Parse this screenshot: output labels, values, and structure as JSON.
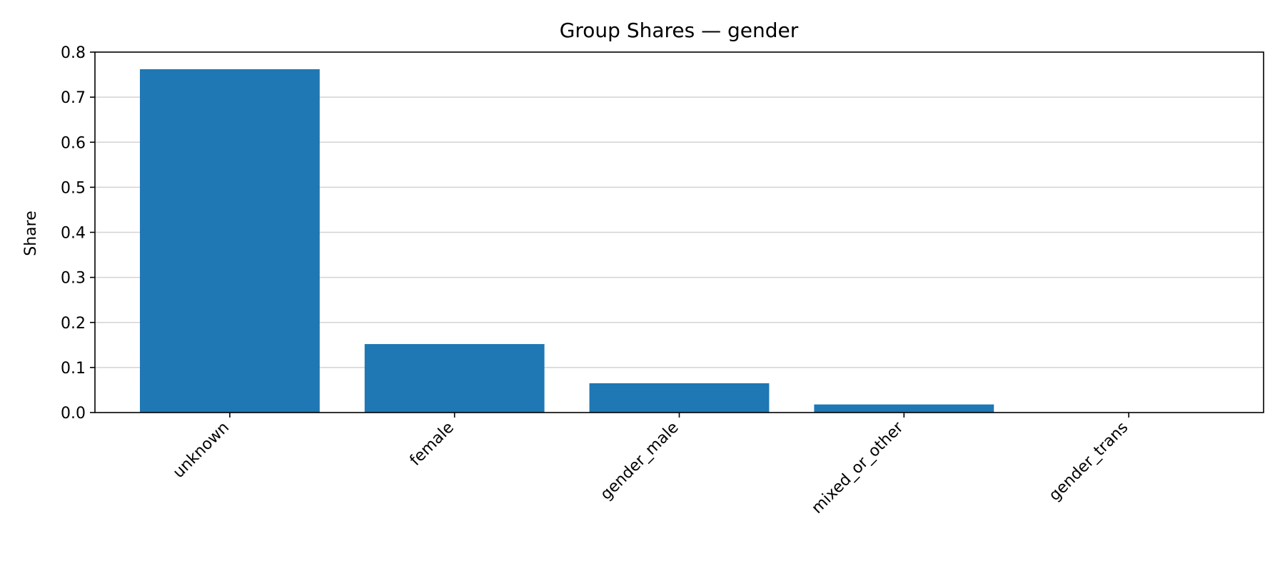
{
  "chart_data": {
    "type": "bar",
    "title": "Group Shares — gender",
    "xlabel": "",
    "ylabel": "Share",
    "ylim": [
      0,
      0.8
    ],
    "yticks": [
      0.0,
      0.1,
      0.2,
      0.3,
      0.4,
      0.5,
      0.6,
      0.7,
      0.8
    ],
    "ytick_labels": [
      "0.0",
      "0.1",
      "0.2",
      "0.3",
      "0.4",
      "0.5",
      "0.6",
      "0.7",
      "0.8"
    ],
    "categories": [
      "unknown",
      "female",
      "gender_male",
      "mixed_or_other",
      "gender_trans"
    ],
    "values": [
      0.762,
      0.152,
      0.065,
      0.018,
      0.0
    ],
    "bar_color": "#1f77b4",
    "grid": "y",
    "grid_color": "#d3d3d3",
    "xtick_rotation": "45"
  }
}
